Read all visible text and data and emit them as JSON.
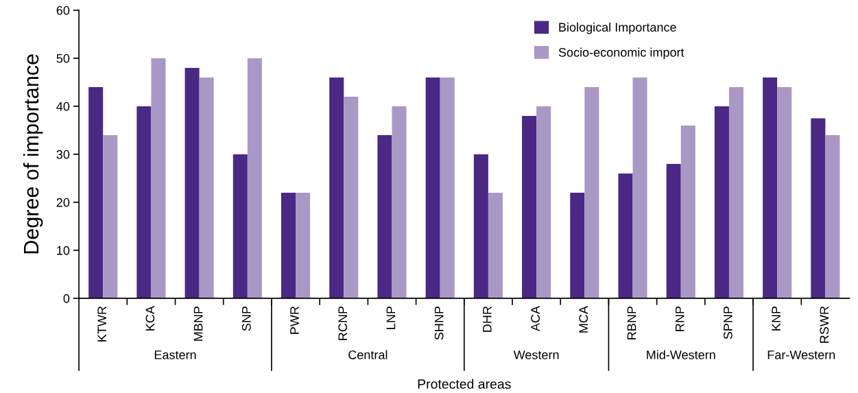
{
  "chart_data": {
    "type": "bar",
    "xlabel": "Protected areas",
    "ylabel": "Degree of importance",
    "categories": [
      "KTWR",
      "KCA",
      "MBNP",
      "SNP",
      "PWR",
      "RCNP",
      "LNP",
      "SHNP",
      "DHR",
      "ACA",
      "MCA",
      "RBNP",
      "RNP",
      "SPNP",
      "KNP",
      "RSWR"
    ],
    "series": [
      {
        "name": "Biological Importance",
        "color": "#4a2884",
        "values": [
          44,
          40,
          48,
          30,
          22,
          46,
          34,
          46,
          30,
          38,
          22,
          26,
          28,
          40,
          46,
          37.5
        ]
      },
      {
        "name": "Socio-economic import",
        "color": "#a998c6",
        "values": [
          34,
          50,
          46,
          50,
          22,
          42,
          40,
          46,
          22,
          40,
          44,
          46,
          36,
          44,
          44,
          34
        ]
      }
    ],
    "annotations": [
      "Eastern",
      "Central",
      "Western",
      "Mid-Western",
      "Far-Western"
    ],
    "ylim": [
      0,
      60
    ],
    "yticks": [
      0,
      10,
      20,
      30,
      40,
      50,
      60
    ],
    "grid": false,
    "legend": "top right"
  }
}
